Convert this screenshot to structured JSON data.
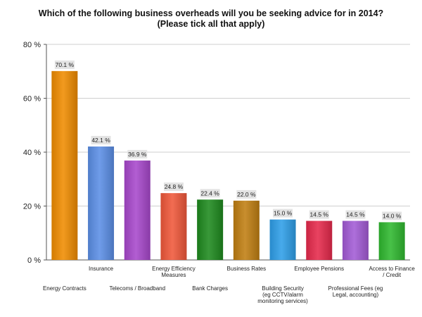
{
  "chart_data": {
    "type": "bar",
    "title_lines": [
      "Which of the following business overheads will you be seeking advice for in 2014?",
      "(Please tick all that apply)"
    ],
    "categories": [
      [
        "Energy Contracts"
      ],
      [
        "Insurance"
      ],
      [
        "Telecoms / Broadband"
      ],
      [
        "Energy Efficiency",
        "Measures"
      ],
      [
        "Bank Charges"
      ],
      [
        "Business Rates"
      ],
      [
        "Building Security",
        "(eg CCTV/alarm",
        "monitoring services)"
      ],
      [
        "Employee Pensions"
      ],
      [
        "Professional Fees (eg",
        "Legal, accounting)"
      ],
      [
        "Access to Finance",
        "/ Credit"
      ]
    ],
    "values": [
      70.1,
      42.1,
      36.9,
      24.8,
      22.4,
      22.0,
      15.0,
      14.5,
      14.5,
      14.0
    ],
    "value_labels": [
      "70.1 %",
      "42.1 %",
      "36.9 %",
      "24.8 %",
      "22.4 %",
      "22.0 %",
      "15.0 %",
      "14.5 %",
      "14.5 %",
      "14.0 %"
    ],
    "colors": [
      "#f08c00",
      "#5b8fe6",
      "#a848cc",
      "#f0583a",
      "#1e8a1e",
      "#c07f12",
      "#2e9ee8",
      "#e6294b",
      "#a35bd6",
      "#2fb82f"
    ],
    "ylim": [
      0,
      80
    ],
    "yticks": [
      0,
      20,
      40,
      60,
      80
    ],
    "ytick_labels": [
      "0 %",
      "20 %",
      "40 %",
      "60 %",
      "80 %"
    ],
    "xlabel": "",
    "ylabel": "",
    "grid": true
  }
}
